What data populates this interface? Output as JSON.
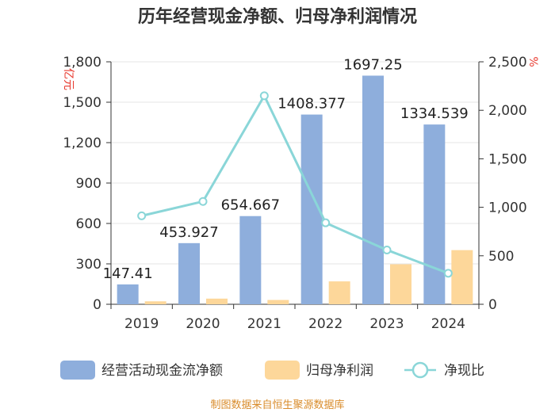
{
  "chart_data": {
    "type": "bar+line",
    "title": "历年经营现金净额、归母净利润情况",
    "categories": [
      "2019",
      "2020",
      "2021",
      "2022",
      "2023",
      "2024"
    ],
    "series": [
      {
        "name": "经营活动现金流净额",
        "kind": "bar",
        "axis": "left",
        "color": "#8eaedc",
        "values": [
          147.41,
          453.927,
          654.667,
          1408.377,
          1697.25,
          1334.539
        ]
      },
      {
        "name": "归母净利润",
        "kind": "bar",
        "axis": "left",
        "color": "#fdd79a",
        "values": [
          22,
          42,
          32,
          170,
          297,
          402
        ]
      },
      {
        "name": "净现比",
        "kind": "line",
        "axis": "right",
        "color": "#8ad6d8",
        "values": [
          912,
          1060,
          2150,
          840,
          560,
          320
        ]
      }
    ],
    "data_labels": [
      "147.41",
      "453.927",
      "654.667",
      "1408.377",
      "1697.25",
      "1334.539"
    ],
    "y_left": {
      "unit": "亿元",
      "range": [
        0,
        1800
      ],
      "ticks": [
        "0",
        "300",
        "600",
        "900",
        "1,200",
        "1,500",
        "1,800"
      ]
    },
    "y_right": {
      "unit": "%",
      "range": [
        0,
        2500
      ],
      "ticks": [
        "0",
        "500",
        "1,000",
        "1,500",
        "2,000",
        "2,500"
      ]
    },
    "legend_position": "bottom",
    "source": "制图数据来自恒生聚源数据库",
    "colors": {
      "axis": "#333333",
      "grid": "#e6e6e6",
      "unit": "#e8392e",
      "source": "#d98c2b"
    }
  }
}
